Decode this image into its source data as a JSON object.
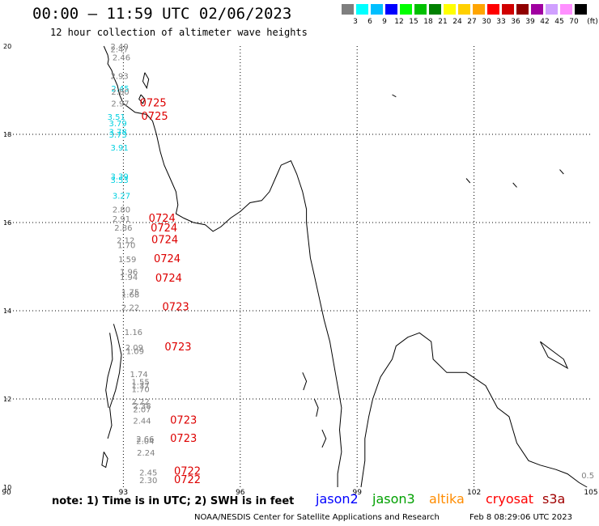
{
  "header": {
    "title": "00:00 – 11:59 UTC 02/06/2023",
    "subtitle": "12 hour collection of altimeter wave heights"
  },
  "color_scale": {
    "colors": [
      "#7f7f7f",
      "#00ffff",
      "#00bfff",
      "#0000ff",
      "#00ff00",
      "#00c000",
      "#008000",
      "#ffff00",
      "#ffd000",
      "#ffa500",
      "#ff0000",
      "#d00000",
      "#900000",
      "#a000a0",
      "#d0a0ff",
      "#ff90ff",
      "#000000"
    ],
    "labels": [
      "3",
      "6",
      "9",
      "12",
      "15",
      "18",
      "21",
      "24",
      "27",
      "30",
      "33",
      "36",
      "39",
      "42",
      "45",
      "70"
    ],
    "unit": "(ft)"
  },
  "axes": {
    "lon_labels": [
      "90",
      "93",
      "96",
      "99",
      "102",
      "105"
    ],
    "lat_labels": [
      "20",
      "18",
      "16",
      "14",
      "12",
      "10"
    ]
  },
  "observations": [
    {
      "v": "2.40",
      "lon": 92.9,
      "lat": 19.93,
      "c": "#808080"
    },
    {
      "v": "2.47",
      "lon": 92.9,
      "lat": 19.86,
      "c": "#808080"
    },
    {
      "v": "2.46",
      "lon": 92.95,
      "lat": 19.68,
      "c": "#808080"
    },
    {
      "v": "2.93",
      "lon": 92.9,
      "lat": 19.26,
      "c": "#808080"
    },
    {
      "v": "2.45",
      "lon": 92.92,
      "lat": 18.97,
      "c": "#00d0e0"
    },
    {
      "v": "2.80",
      "lon": 92.92,
      "lat": 18.9,
      "c": "#808080"
    },
    {
      "v": "2.97",
      "lon": 92.92,
      "lat": 18.63,
      "c": "#808080"
    },
    {
      "v": "3.51",
      "lon": 92.82,
      "lat": 18.33,
      "c": "#00d0e0"
    },
    {
      "v": "3.79",
      "lon": 92.86,
      "lat": 18.18,
      "c": "#00d0e0"
    },
    {
      "v": "3.78",
      "lon": 92.86,
      "lat": 17.99,
      "c": "#00d0e0"
    },
    {
      "v": "3.73",
      "lon": 92.86,
      "lat": 17.93,
      "c": "#00d0e0"
    },
    {
      "v": "3.91",
      "lon": 92.9,
      "lat": 17.63,
      "c": "#00d0e0"
    },
    {
      "v": "3.39",
      "lon": 92.9,
      "lat": 16.98,
      "c": "#00d0e0"
    },
    {
      "v": "3.53",
      "lon": 92.9,
      "lat": 16.9,
      "c": "#00d0e0"
    },
    {
      "v": "3.27",
      "lon": 92.95,
      "lat": 16.54,
      "c": "#00d0e0"
    },
    {
      "v": "2.80",
      "lon": 92.95,
      "lat": 16.23,
      "c": "#808080"
    },
    {
      "v": "2.91",
      "lon": 92.95,
      "lat": 16.02,
      "c": "#808080"
    },
    {
      "v": "2.86",
      "lon": 93.0,
      "lat": 15.82,
      "c": "#808080"
    },
    {
      "v": "2.12",
      "lon": 93.06,
      "lat": 15.53,
      "c": "#808080"
    },
    {
      "v": "1.70",
      "lon": 93.08,
      "lat": 15.42,
      "c": "#808080"
    },
    {
      "v": "1.59",
      "lon": 93.1,
      "lat": 15.1,
      "c": "#808080"
    },
    {
      "v": "1.96",
      "lon": 93.14,
      "lat": 14.82,
      "c": "#808080"
    },
    {
      "v": "1.94",
      "lon": 93.14,
      "lat": 14.7,
      "c": "#808080"
    },
    {
      "v": "1.75",
      "lon": 93.18,
      "lat": 14.36,
      "c": "#808080"
    },
    {
      "v": "1.68",
      "lon": 93.18,
      "lat": 14.3,
      "c": "#808080"
    },
    {
      "v": "2.22",
      "lon": 93.18,
      "lat": 14.01,
      "c": "#808080"
    },
    {
      "v": "1.16",
      "lon": 93.26,
      "lat": 13.45,
      "c": "#808080"
    },
    {
      "v": "2.09",
      "lon": 93.28,
      "lat": 13.1,
      "c": "#808080"
    },
    {
      "v": "1.09",
      "lon": 93.3,
      "lat": 13.02,
      "c": "#808080"
    },
    {
      "v": "1.74",
      "lon": 93.4,
      "lat": 12.5,
      "c": "#808080"
    },
    {
      "v": "1.55",
      "lon": 93.44,
      "lat": 12.32,
      "c": "#808080"
    },
    {
      "v": "1.37",
      "lon": 93.44,
      "lat": 12.24,
      "c": "#808080"
    },
    {
      "v": "1.70",
      "lon": 93.44,
      "lat": 12.16,
      "c": "#808080"
    },
    {
      "v": "2.22",
      "lon": 93.44,
      "lat": 11.87,
      "c": "#808080"
    },
    {
      "v": "2.38",
      "lon": 93.48,
      "lat": 11.78,
      "c": "#808080"
    },
    {
      "v": "2.07",
      "lon": 93.48,
      "lat": 11.7,
      "c": "#808080"
    },
    {
      "v": "2.44",
      "lon": 93.48,
      "lat": 11.44,
      "c": "#808080"
    },
    {
      "v": "2.66",
      "lon": 93.56,
      "lat": 11.03,
      "c": "#808080"
    },
    {
      "v": "2.04",
      "lon": 93.56,
      "lat": 10.98,
      "c": "#808080"
    },
    {
      "v": "2.24",
      "lon": 93.58,
      "lat": 10.72,
      "c": "#808080"
    },
    {
      "v": "2.45",
      "lon": 93.64,
      "lat": 10.27,
      "c": "#808080"
    },
    {
      "v": "2.30",
      "lon": 93.64,
      "lat": 10.09,
      "c": "#808080"
    },
    {
      "v": "0.5",
      "lon": 104.92,
      "lat": 10.2,
      "c": "#808080"
    }
  ],
  "passes": [
    {
      "label": "0725",
      "lon": 93.42,
      "lat": 18.63
    },
    {
      "label": "0725",
      "lon": 93.46,
      "lat": 18.33
    },
    {
      "label": "0724",
      "lon": 93.65,
      "lat": 16.02
    },
    {
      "label": "0724",
      "lon": 93.7,
      "lat": 15.8
    },
    {
      "label": "0724",
      "lon": 93.72,
      "lat": 15.53
    },
    {
      "label": "0724",
      "lon": 93.78,
      "lat": 15.1
    },
    {
      "label": "0724",
      "lon": 93.82,
      "lat": 14.66
    },
    {
      "label": "0723",
      "lon": 94.0,
      "lat": 14.01
    },
    {
      "label": "0723",
      "lon": 94.06,
      "lat": 13.1
    },
    {
      "label": "0723",
      "lon": 94.2,
      "lat": 11.44
    },
    {
      "label": "0723",
      "lon": 94.2,
      "lat": 11.03
    },
    {
      "label": "0722",
      "lon": 94.3,
      "lat": 10.28
    },
    {
      "label": "0722",
      "lon": 94.3,
      "lat": 10.09
    }
  ],
  "footer": {
    "note": "note: 1) Time is in UTC; 2) SWH is in feet",
    "missions": [
      {
        "name": "jason2",
        "color": "#0000ff"
      },
      {
        "name": "jason3",
        "color": "#00a000"
      },
      {
        "name": "altika",
        "color": "#ff8c00"
      },
      {
        "name": "cryosat",
        "color": "#ff0000"
      },
      {
        "name": "s3a",
        "color": "#a00000"
      }
    ],
    "credit": "NOAA/NESDIS Center for Satellite Applications and Research",
    "timestamp": "Feb  8 08:29:06 UTC 2023"
  }
}
